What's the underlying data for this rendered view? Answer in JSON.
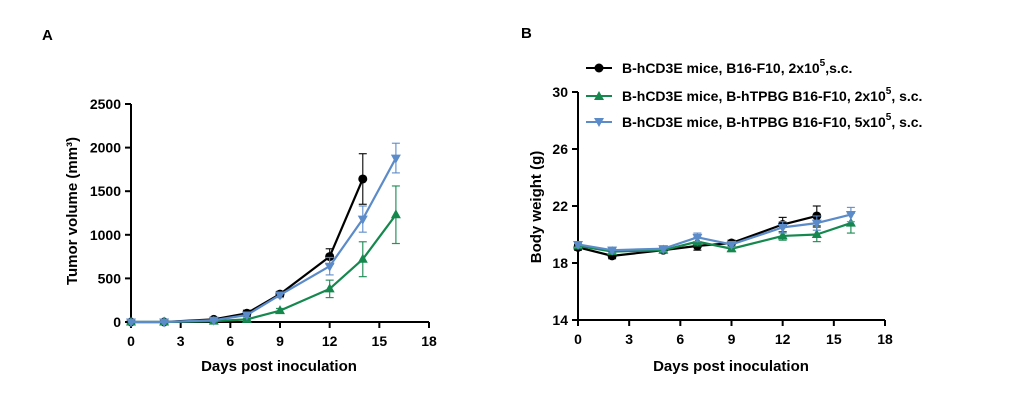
{
  "chart_data": [
    {
      "id": "A",
      "panel_label": "A",
      "type": "line",
      "xlabel": "Days post inoculation",
      "ylabel": "Tumor volume (mm³)",
      "xlim": [
        0,
        18
      ],
      "ylim": [
        0,
        2500
      ],
      "xticks": [
        0,
        3,
        6,
        9,
        12,
        15,
        18
      ],
      "yticks": [
        0,
        500,
        1000,
        1500,
        2000,
        2500
      ],
      "grid": false,
      "series": [
        {
          "key": "hcd3e-b16f10",
          "color": "#000000",
          "marker": "circle",
          "x": [
            0,
            2,
            5,
            7,
            9,
            12,
            14
          ],
          "y": [
            0,
            0,
            30,
            100,
            320,
            750,
            1640
          ],
          "err": [
            0,
            0,
            15,
            35,
            30,
            90,
            290
          ]
        },
        {
          "key": "hcd3e-htpbg-2e5",
          "color": "#15884e",
          "marker": "triangle-up",
          "x": [
            0,
            2,
            5,
            7,
            9,
            12,
            14,
            16
          ],
          "y": [
            0,
            0,
            10,
            30,
            130,
            380,
            720,
            1230
          ],
          "err": [
            0,
            0,
            5,
            10,
            25,
            100,
            200,
            330
          ]
        },
        {
          "key": "hcd3e-htpbg-5e5",
          "color": "#5b8bc9",
          "marker": "triangle-down",
          "x": [
            0,
            2,
            5,
            7,
            9,
            12,
            14,
            16
          ],
          "y": [
            0,
            0,
            20,
            80,
            310,
            640,
            1180,
            1880
          ],
          "err": [
            0,
            0,
            10,
            25,
            30,
            100,
            150,
            170
          ]
        }
      ]
    },
    {
      "id": "B",
      "panel_label": "B",
      "type": "line",
      "xlabel": "Days post inoculation",
      "ylabel": "Body weight (g)",
      "xlim": [
        0,
        18
      ],
      "ylim": [
        14,
        30
      ],
      "xticks": [
        0,
        3,
        6,
        9,
        12,
        15,
        18
      ],
      "yticks": [
        14,
        18,
        22,
        26,
        30
      ],
      "grid": false,
      "legend_position": "top",
      "series": [
        {
          "key": "hcd3e-b16f10",
          "name_prefix": "B-hCD3E mice, B16-F10, 2x10",
          "name_sup": "5",
          "name_suffix": ",s.c.",
          "color": "#000000",
          "marker": "circle",
          "x": [
            0,
            2,
            5,
            7,
            9,
            12,
            14
          ],
          "y": [
            19.1,
            18.5,
            18.9,
            19.2,
            19.4,
            20.7,
            21.3
          ],
          "err": [
            0.2,
            0.2,
            0.2,
            0.3,
            0.2,
            0.5,
            0.7
          ]
        },
        {
          "key": "hcd3e-htpbg-2e5",
          "name_prefix": "B-hCD3E mice, B-hTPBG B16-F10, 2x10",
          "name_sup": "5",
          "name_suffix": ", s.c.",
          "color": "#15884e",
          "marker": "triangle-up",
          "x": [
            0,
            2,
            5,
            7,
            9,
            12,
            14,
            16
          ],
          "y": [
            19.2,
            18.8,
            18.9,
            19.5,
            19.0,
            19.9,
            20.0,
            20.8
          ],
          "err": [
            0.2,
            0.2,
            0.2,
            0.3,
            0.2,
            0.3,
            0.5,
            0.7
          ]
        },
        {
          "key": "hcd3e-htpbg-5e5",
          "name_prefix": "B-hCD3E mice, B-hTPBG B16-F10, 5x10",
          "name_sup": "5",
          "name_suffix": ", s.c.",
          "color": "#5b8bc9",
          "marker": "triangle-down",
          "x": [
            0,
            2,
            5,
            7,
            9,
            12,
            14,
            16
          ],
          "y": [
            19.3,
            18.9,
            19.0,
            19.8,
            19.3,
            20.5,
            20.8,
            21.4
          ],
          "err": [
            0.2,
            0.2,
            0.2,
            0.3,
            0.2,
            0.4,
            0.5,
            0.5
          ]
        }
      ]
    }
  ]
}
